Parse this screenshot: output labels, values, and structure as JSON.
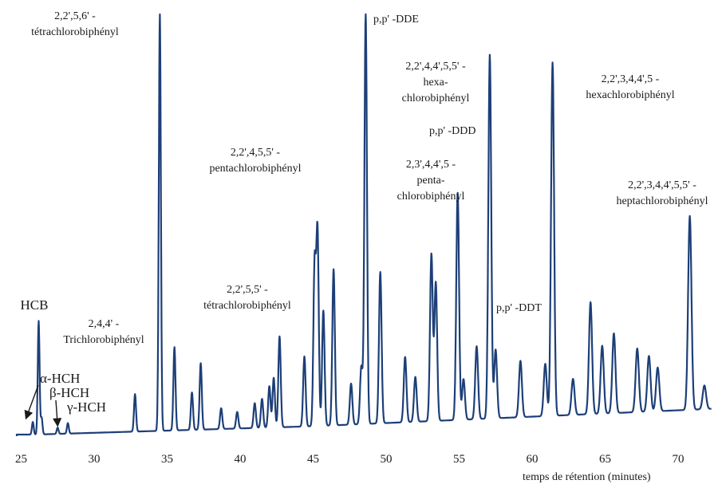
{
  "chart_data": {
    "type": "line",
    "title": "",
    "xlabel": "temps de rétention (minutes)",
    "ylabel": "",
    "xlim": [
      24.5,
      72.5
    ],
    "ylim": [
      0,
      100
    ],
    "x_ticks": [
      25,
      30,
      35,
      40,
      45,
      50,
      55,
      60,
      65,
      70
    ],
    "grid": false,
    "line_color": "#1d3f78",
    "peaks": [
      {
        "x": 25.8,
        "y": 3
      },
      {
        "x": 26.2,
        "y": 27
      },
      {
        "x": 26.4,
        "y": 4
      },
      {
        "x": 27.5,
        "y": 1.5
      },
      {
        "x": 28.2,
        "y": 2.5
      },
      {
        "x": 32.8,
        "y": 9
      },
      {
        "x": 34.5,
        "y": 100
      },
      {
        "x": 35.5,
        "y": 20
      },
      {
        "x": 36.7,
        "y": 9
      },
      {
        "x": 37.3,
        "y": 16
      },
      {
        "x": 38.7,
        "y": 5
      },
      {
        "x": 39.8,
        "y": 4
      },
      {
        "x": 41.0,
        "y": 6
      },
      {
        "x": 41.5,
        "y": 7
      },
      {
        "x": 42.0,
        "y": 10
      },
      {
        "x": 42.3,
        "y": 12
      },
      {
        "x": 42.7,
        "y": 22
      },
      {
        "x": 44.4,
        "y": 17
      },
      {
        "x": 45.1,
        "y": 39
      },
      {
        "x": 45.3,
        "y": 47
      },
      {
        "x": 45.7,
        "y": 28
      },
      {
        "x": 46.4,
        "y": 38
      },
      {
        "x": 47.6,
        "y": 10
      },
      {
        "x": 48.3,
        "y": 14
      },
      {
        "x": 48.6,
        "y": 100
      },
      {
        "x": 49.6,
        "y": 37
      },
      {
        "x": 51.3,
        "y": 16
      },
      {
        "x": 52.0,
        "y": 11
      },
      {
        "x": 53.1,
        "y": 41
      },
      {
        "x": 53.4,
        "y": 34
      },
      {
        "x": 54.9,
        "y": 56
      },
      {
        "x": 55.3,
        "y": 10
      },
      {
        "x": 56.2,
        "y": 18
      },
      {
        "x": 57.1,
        "y": 90
      },
      {
        "x": 57.5,
        "y": 17
      },
      {
        "x": 59.2,
        "y": 14
      },
      {
        "x": 60.9,
        "y": 13
      },
      {
        "x": 61.4,
        "y": 88
      },
      {
        "x": 62.8,
        "y": 9
      },
      {
        "x": 64.0,
        "y": 28
      },
      {
        "x": 64.8,
        "y": 17
      },
      {
        "x": 65.6,
        "y": 20
      },
      {
        "x": 67.2,
        "y": 16
      },
      {
        "x": 68.0,
        "y": 14
      },
      {
        "x": 68.6,
        "y": 11
      },
      {
        "x": 70.8,
        "y": 49
      },
      {
        "x": 71.8,
        "y": 6
      }
    ],
    "annotations": [
      {
        "lines": [
          "2,2',5,6' -",
          "tétrachlorobiphényl"
        ]
      },
      {
        "lines": [
          "p,p' -DDE"
        ]
      },
      {
        "lines": [
          "2,2',4,4',5,5' -",
          "hexa-",
          "chlorobiphényl"
        ]
      },
      {
        "lines": [
          "2,2',3,4,4',5 -",
          "hexachlorobiphényl"
        ]
      },
      {
        "lines": [
          "p,p' -DDD"
        ]
      },
      {
        "lines": [
          "2,2',4,5,5' -",
          "pentachlorobiphényl"
        ]
      },
      {
        "lines": [
          "2,3',4,4',5 -",
          "penta-",
          "chlorobiphényl"
        ]
      },
      {
        "lines": [
          "2,2',3,4,4',5,5' -",
          "heptachlorobiphényl"
        ]
      },
      {
        "lines": [
          "2,2',5,5' -",
          "tétrachlorobiphényl"
        ]
      },
      {
        "lines": [
          "p,p' -DDT"
        ]
      },
      {
        "lines": [
          "HCB"
        ]
      },
      {
        "lines": [
          "2,4,4' -",
          "Trichlorobiphényl"
        ]
      },
      {
        "lines": [
          "α-HCH"
        ]
      },
      {
        "lines": [
          "β-HCH"
        ]
      },
      {
        "lines": [
          "γ-HCH"
        ]
      }
    ]
  }
}
